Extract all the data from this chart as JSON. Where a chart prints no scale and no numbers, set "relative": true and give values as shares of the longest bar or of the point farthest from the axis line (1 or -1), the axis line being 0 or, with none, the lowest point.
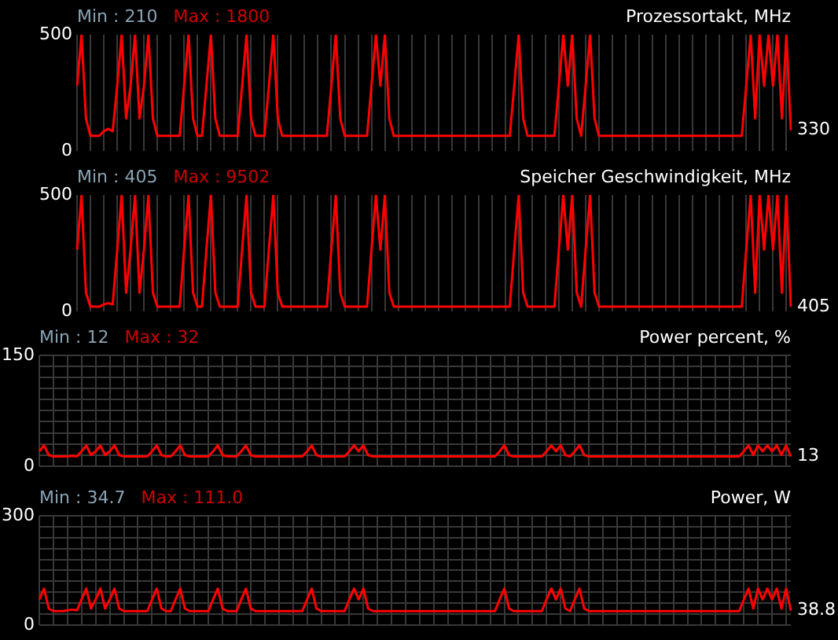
{
  "chart_data": [
    {
      "type": "line",
      "title": "Prozessortakt, MHz",
      "color": "#ff0000",
      "grid": true,
      "relative": true,
      "tick_labels": false,
      "annotations": [
        "Min : 210",
        "Max : 1800",
        "330",
        "0",
        "500"
      ],
      "categories": [
        null,
        null,
        null,
        null,
        null,
        null,
        null,
        null,
        null,
        null,
        null,
        null,
        null,
        null,
        null,
        null,
        null,
        null,
        null,
        null,
        null,
        null,
        null,
        null,
        null,
        null,
        null,
        null,
        null,
        null,
        null,
        null,
        null,
        null,
        null,
        null,
        null,
        null,
        null,
        null,
        null,
        null,
        null,
        null,
        null,
        null,
        null,
        null,
        null,
        null,
        null,
        null,
        null,
        null,
        null,
        null,
        null,
        null,
        null,
        null,
        null,
        null,
        null,
        null,
        null,
        null,
        null,
        null,
        null,
        null,
        null,
        null,
        null,
        null,
        null,
        null,
        null,
        null,
        null,
        null,
        null,
        null,
        null,
        null,
        null,
        null,
        null,
        null,
        null,
        null,
        null,
        null,
        null,
        null,
        null,
        null,
        null,
        null,
        null,
        null,
        null,
        null,
        null,
        null,
        null,
        null,
        null,
        null,
        null,
        null,
        null,
        null,
        null,
        null,
        null,
        null,
        null,
        null,
        null,
        null,
        null,
        null,
        null,
        null,
        null,
        null,
        null,
        null,
        null,
        null,
        null,
        null,
        null,
        null,
        null,
        null,
        null,
        null,
        null,
        null,
        null,
        null,
        null,
        null,
        null,
        null,
        null,
        null,
        null,
        null,
        null,
        null,
        null,
        null,
        null,
        null,
        null,
        null,
        null,
        null,
        null
      ],
      "values": [
        0.56,
        1,
        0.28,
        0.13,
        0.13,
        0.13,
        0.17,
        0.19,
        0.17,
        0.56,
        1,
        0.28,
        0.56,
        1,
        0.28,
        0.56,
        1,
        0.28,
        0.13,
        0.13,
        0.13,
        0.13,
        0.13,
        0.13,
        0.56,
        1,
        0.28,
        0.13,
        0.13,
        0.56,
        1,
        0.28,
        0.13,
        0.13,
        0.13,
        0.13,
        0.13,
        0.56,
        1,
        0.28,
        0.13,
        0.13,
        0.13,
        0.56,
        1,
        0.28,
        0.13,
        0.13,
        0.13,
        0.13,
        0.13,
        0.13,
        0.13,
        0.13,
        0.13,
        0.13,
        0.13,
        0.56,
        1,
        0.28,
        0.13,
        0.13,
        0.13,
        0.13,
        0.13,
        0.13,
        0.56,
        1,
        0.56,
        1,
        0.28,
        0.13,
        0.13,
        0.13,
        0.13,
        0.13,
        0.13,
        0.13,
        0.13,
        0.13,
        0.13,
        0.13,
        0.13,
        0.13,
        0.13,
        0.13,
        0.13,
        0.13,
        0.13,
        0.13,
        0.13,
        0.13,
        0.13,
        0.13,
        0.13,
        0.13,
        0.13,
        0.13,
        0.56,
        1,
        0.28,
        0.13,
        0.13,
        0.13,
        0.13,
        0.13,
        0.13,
        0.13,
        0.56,
        1,
        0.56,
        1,
        0.28,
        0.13,
        0.56,
        1,
        0.28,
        0.13,
        0.13,
        0.13,
        0.13,
        0.13,
        0.13,
        0.13,
        0.13,
        0.13,
        0.13,
        0.13,
        0.13,
        0.13,
        0.13,
        0.13,
        0.13,
        0.13,
        0.13,
        0.13,
        0.13,
        0.13,
        0.13,
        0.13,
        0.13,
        0.13,
        0.13,
        0.13,
        0.13,
        0.13,
        0.13,
        0.13,
        0.13,
        0.13,
        0.56,
        1,
        0.28,
        1,
        0.56,
        1,
        0.56,
        1,
        0.28,
        1,
        0.18
      ]
    },
    {
      "type": "line",
      "title": "Speicher Geschwindigkeit, MHz",
      "color": "#ff0000",
      "grid": true,
      "relative": true,
      "tick_labels": false,
      "annotations": [
        "Min : 405",
        "Max : 9502",
        "405",
        "0",
        "500"
      ],
      "categories": [
        null,
        null,
        null,
        null,
        null,
        null,
        null,
        null,
        null,
        null,
        null,
        null,
        null,
        null,
        null,
        null,
        null,
        null,
        null,
        null,
        null,
        null,
        null,
        null,
        null,
        null,
        null,
        null,
        null,
        null,
        null,
        null,
        null,
        null,
        null,
        null,
        null,
        null,
        null,
        null,
        null,
        null,
        null,
        null,
        null,
        null,
        null,
        null,
        null,
        null,
        null,
        null,
        null,
        null,
        null,
        null,
        null,
        null,
        null,
        null,
        null,
        null,
        null,
        null,
        null,
        null,
        null,
        null,
        null,
        null,
        null,
        null,
        null,
        null,
        null,
        null,
        null,
        null,
        null,
        null,
        null,
        null,
        null,
        null,
        null,
        null,
        null,
        null,
        null,
        null,
        null,
        null,
        null,
        null,
        null,
        null,
        null,
        null,
        null,
        null,
        null,
        null,
        null,
        null,
        null,
        null,
        null,
        null,
        null,
        null,
        null,
        null,
        null,
        null,
        null,
        null,
        null,
        null,
        null,
        null,
        null,
        null,
        null,
        null,
        null,
        null,
        null,
        null,
        null,
        null,
        null,
        null,
        null,
        null,
        null,
        null,
        null,
        null,
        null,
        null,
        null,
        null,
        null,
        null,
        null,
        null,
        null,
        null,
        null,
        null,
        null,
        null,
        null,
        null,
        null,
        null,
        null,
        null,
        null,
        null,
        null
      ],
      "values": [
        0.53,
        1,
        0.16,
        0.04,
        0.04,
        0.04,
        0.06,
        0.07,
        0.06,
        0.53,
        1,
        0.16,
        0.53,
        1,
        0.16,
        0.53,
        1,
        0.16,
        0.04,
        0.04,
        0.04,
        0.04,
        0.04,
        0.04,
        0.53,
        1,
        0.16,
        0.04,
        0.04,
        0.53,
        1,
        0.16,
        0.04,
        0.04,
        0.04,
        0.04,
        0.04,
        0.53,
        1,
        0.16,
        0.04,
        0.04,
        0.04,
        0.53,
        1,
        0.16,
        0.04,
        0.04,
        0.04,
        0.04,
        0.04,
        0.04,
        0.04,
        0.04,
        0.04,
        0.04,
        0.04,
        0.53,
        1,
        0.16,
        0.04,
        0.04,
        0.04,
        0.04,
        0.04,
        0.04,
        0.53,
        1,
        0.53,
        1,
        0.16,
        0.04,
        0.04,
        0.04,
        0.04,
        0.04,
        0.04,
        0.04,
        0.04,
        0.04,
        0.04,
        0.04,
        0.04,
        0.04,
        0.04,
        0.04,
        0.04,
        0.04,
        0.04,
        0.04,
        0.04,
        0.04,
        0.04,
        0.04,
        0.04,
        0.04,
        0.04,
        0.04,
        0.53,
        1,
        0.16,
        0.04,
        0.04,
        0.04,
        0.04,
        0.04,
        0.04,
        0.04,
        0.53,
        1,
        0.53,
        1,
        0.16,
        0.04,
        0.53,
        1,
        0.16,
        0.04,
        0.04,
        0.04,
        0.04,
        0.04,
        0.04,
        0.04,
        0.04,
        0.04,
        0.04,
        0.04,
        0.04,
        0.04,
        0.04,
        0.04,
        0.04,
        0.04,
        0.04,
        0.04,
        0.04,
        0.04,
        0.04,
        0.04,
        0.04,
        0.04,
        0.04,
        0.04,
        0.04,
        0.04,
        0.04,
        0.04,
        0.04,
        0.04,
        0.53,
        1,
        0.16,
        1,
        0.53,
        1,
        0.53,
        1,
        0.16,
        1,
        0.04
      ]
    },
    {
      "type": "line",
      "title": "Power percent, %",
      "color": "#ff0000",
      "grid": true,
      "tick_labels": "y",
      "ylim": [
        0,
        150
      ],
      "yticks": [
        0,
        {
          "value": 15,
          "label": null
        },
        {
          "value": 30,
          "label": null
        },
        {
          "value": 45,
          "label": null
        },
        {
          "value": 60,
          "label": null
        },
        {
          "value": 75,
          "label": null
        },
        {
          "value": 90,
          "label": null
        },
        {
          "value": 105,
          "label": null
        },
        {
          "value": 120,
          "label": null
        },
        {
          "value": 135,
          "label": null
        },
        150
      ],
      "annotations": [
        "Min : 12",
        "Max : 32",
        "13"
      ],
      "categories": [
        null,
        null,
        null,
        null,
        null,
        null,
        null,
        null,
        null,
        null,
        null,
        null,
        null,
        null,
        null,
        null,
        null,
        null,
        null,
        null,
        null,
        null,
        null,
        null,
        null,
        null,
        null,
        null,
        null,
        null,
        null,
        null,
        null,
        null,
        null,
        null,
        null,
        null,
        null,
        null,
        null,
        null,
        null,
        null,
        null,
        null,
        null,
        null,
        null,
        null,
        null,
        null,
        null,
        null,
        null,
        null,
        null,
        null,
        null,
        null,
        null,
        null,
        null,
        null,
        null,
        null,
        null,
        null,
        null,
        null,
        null,
        null,
        null,
        null,
        null,
        null,
        null,
        null,
        null,
        null,
        null,
        null,
        null,
        null,
        null,
        null,
        null,
        null,
        null,
        null,
        null,
        null,
        null,
        null,
        null,
        null,
        null,
        null,
        null,
        null,
        null,
        null,
        null,
        null,
        null,
        null,
        null,
        null,
        null,
        null,
        null,
        null,
        null,
        null,
        null,
        null,
        null,
        null,
        null,
        null,
        null,
        null,
        null,
        null,
        null,
        null,
        null,
        null,
        null,
        null,
        null,
        null,
        null,
        null,
        null,
        null,
        null,
        null,
        null,
        null,
        null,
        null,
        null,
        null,
        null,
        null,
        null,
        null,
        null,
        null,
        null,
        null,
        null,
        null,
        null,
        null,
        null,
        null,
        null,
        null,
        null
      ],
      "values": [
        20,
        28,
        15,
        13,
        13,
        13,
        13,
        14,
        13,
        20,
        28,
        15,
        20,
        28,
        15,
        20,
        28,
        15,
        13,
        13,
        13,
        13,
        13,
        13,
        20,
        28,
        15,
        13,
        13,
        20,
        28,
        15,
        13,
        13,
        13,
        13,
        13,
        20,
        28,
        15,
        13,
        13,
        13,
        20,
        28,
        15,
        13,
        13,
        13,
        13,
        13,
        13,
        13,
        13,
        13,
        13,
        13,
        20,
        28,
        15,
        13,
        13,
        13,
        13,
        13,
        13,
        20,
        28,
        20,
        28,
        15,
        13,
        13,
        13,
        13,
        13,
        13,
        13,
        13,
        13,
        13,
        13,
        13,
        13,
        13,
        13,
        13,
        13,
        13,
        13,
        13,
        13,
        13,
        13,
        13,
        13,
        13,
        13,
        20,
        28,
        15,
        13,
        13,
        13,
        13,
        13,
        13,
        13,
        20,
        28,
        20,
        28,
        15,
        13,
        20,
        28,
        15,
        13,
        13,
        13,
        13,
        13,
        13,
        13,
        13,
        13,
        13,
        13,
        13,
        13,
        13,
        13,
        13,
        13,
        13,
        13,
        13,
        13,
        13,
        13,
        13,
        13,
        13,
        13,
        13,
        13,
        13,
        13,
        13,
        13,
        20,
        28,
        15,
        28,
        20,
        28,
        20,
        28,
        15,
        28,
        13
      ]
    },
    {
      "type": "line",
      "title": "Power, W",
      "color": "#ff0000",
      "grid": true,
      "tick_labels": "y",
      "ylim": [
        0,
        300
      ],
      "yticks": [
        0,
        {
          "value": 30,
          "label": null
        },
        {
          "value": 60,
          "label": null
        },
        {
          "value": 90,
          "label": null
        },
        {
          "value": 120,
          "label": null
        },
        {
          "value": 150,
          "label": null
        },
        {
          "value": 180,
          "label": null
        },
        {
          "value": 210,
          "label": null
        },
        {
          "value": 240,
          "label": null
        },
        {
          "value": 270,
          "label": null
        },
        300
      ],
      "annotations": [
        "Min : 34.7",
        "Max : 111.0",
        "38.8"
      ],
      "categories": [
        null,
        null,
        null,
        null,
        null,
        null,
        null,
        null,
        null,
        null,
        null,
        null,
        null,
        null,
        null,
        null,
        null,
        null,
        null,
        null,
        null,
        null,
        null,
        null,
        null,
        null,
        null,
        null,
        null,
        null,
        null,
        null,
        null,
        null,
        null,
        null,
        null,
        null,
        null,
        null,
        null,
        null,
        null,
        null,
        null,
        null,
        null,
        null,
        null,
        null,
        null,
        null,
        null,
        null,
        null,
        null,
        null,
        null,
        null,
        null,
        null,
        null,
        null,
        null,
        null,
        null,
        null,
        null,
        null,
        null,
        null,
        null,
        null,
        null,
        null,
        null,
        null,
        null,
        null,
        null,
        null,
        null,
        null,
        null,
        null,
        null,
        null,
        null,
        null,
        null,
        null,
        null,
        null,
        null,
        null,
        null,
        null,
        null,
        null,
        null,
        null,
        null,
        null,
        null,
        null,
        null,
        null,
        null,
        null,
        null,
        null,
        null,
        null,
        null,
        null,
        null,
        null,
        null,
        null,
        null,
        null,
        null,
        null,
        null,
        null,
        null,
        null,
        null,
        null,
        null,
        null,
        null,
        null,
        null,
        null,
        null,
        null,
        null,
        null,
        null,
        null,
        null,
        null,
        null,
        null,
        null,
        null,
        null,
        null,
        null,
        null,
        null,
        null,
        null,
        null,
        null,
        null,
        null,
        null,
        null,
        null
      ],
      "values": [
        70,
        100,
        45,
        38,
        38,
        38,
        40,
        42,
        40,
        70,
        100,
        45,
        70,
        100,
        45,
        70,
        100,
        45,
        38,
        38,
        38,
        38,
        38,
        38,
        70,
        100,
        45,
        38,
        38,
        70,
        100,
        45,
        38,
        38,
        38,
        38,
        38,
        70,
        100,
        45,
        38,
        38,
        38,
        70,
        100,
        45,
        38,
        38,
        38,
        38,
        38,
        38,
        38,
        38,
        38,
        38,
        38,
        70,
        100,
        45,
        38,
        38,
        38,
        38,
        38,
        38,
        70,
        100,
        70,
        100,
        45,
        38,
        38,
        38,
        38,
        38,
        38,
        38,
        38,
        38,
        38,
        38,
        38,
        38,
        38,
        38,
        38,
        38,
        38,
        38,
        38,
        38,
        38,
        38,
        38,
        38,
        38,
        38,
        70,
        100,
        45,
        38,
        38,
        38,
        38,
        38,
        38,
        38,
        70,
        100,
        70,
        100,
        45,
        38,
        70,
        100,
        45,
        38,
        38,
        38,
        38,
        38,
        38,
        38,
        38,
        38,
        38,
        38,
        38,
        38,
        38,
        38,
        38,
        38,
        38,
        38,
        38,
        38,
        38,
        38,
        38,
        38,
        38,
        38,
        38,
        38,
        38,
        38,
        38,
        38,
        70,
        100,
        45,
        100,
        70,
        100,
        70,
        100,
        45,
        100,
        39
      ]
    }
  ]
}
